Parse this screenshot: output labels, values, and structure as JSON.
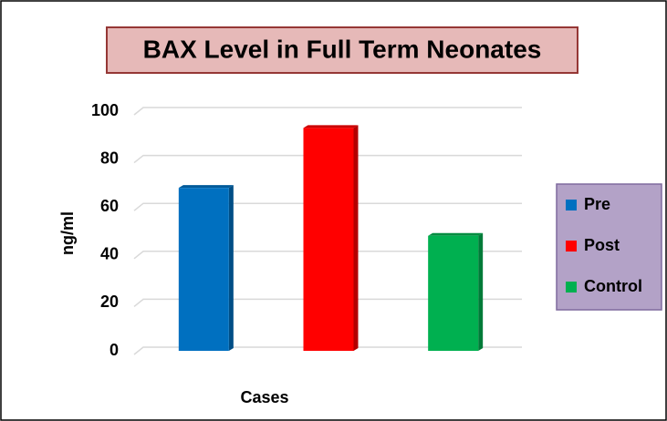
{
  "chart_data": {
    "type": "bar",
    "title": "BAX Level in Full Term Neonates",
    "x_label": "Cases",
    "y_label": "ng/ml",
    "categories": [
      null
    ],
    "series": [
      {
        "name": "Pre",
        "color": "#0070c0",
        "values": [
          68
        ]
      },
      {
        "name": "Post",
        "color": "#ff0000",
        "values": [
          93
        ]
      },
      {
        "name": "Control",
        "color": "#00b050",
        "values": [
          48
        ]
      }
    ],
    "ylim": [
      0,
      100
    ],
    "yticks": [
      0,
      20,
      40,
      60,
      80,
      100
    ],
    "grid": true,
    "legend": "right"
  }
}
